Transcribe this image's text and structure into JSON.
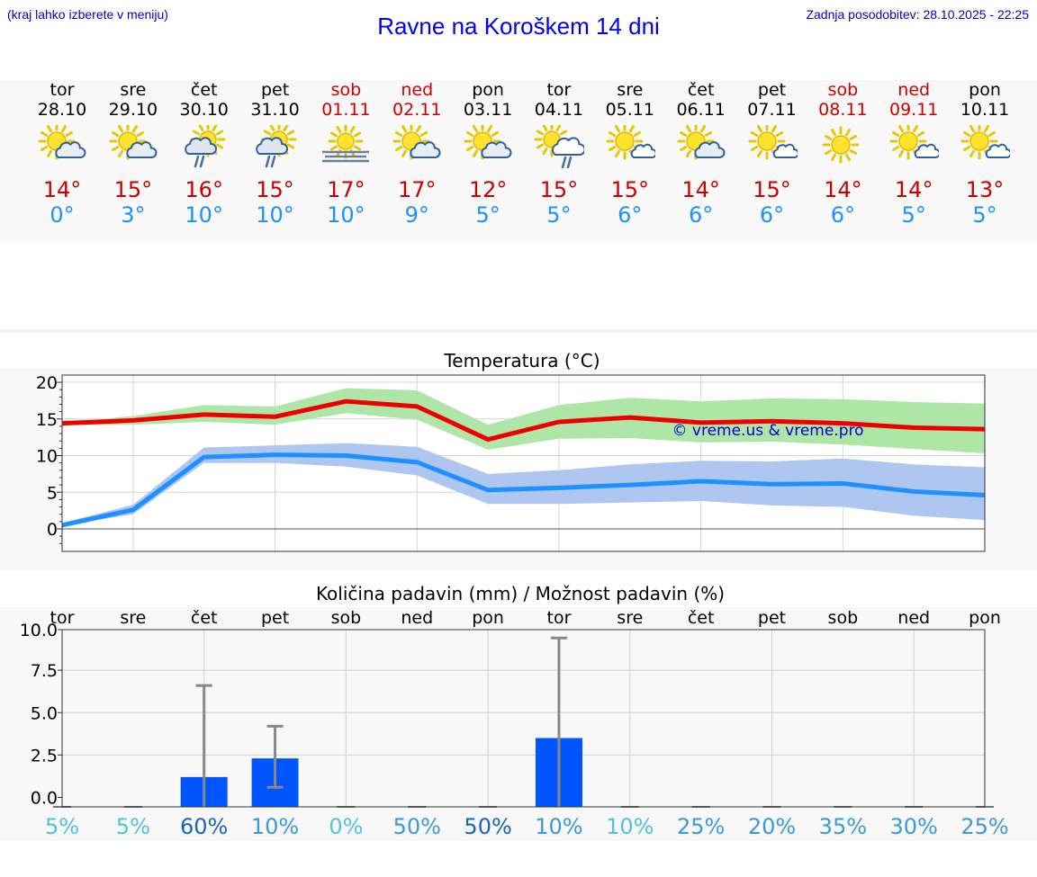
{
  "header": {
    "hint": "(kraj lahko izberete v meniju)",
    "title": "Ravne na Koroškem 14 dni",
    "updated": "Zadnja posodobitev: 28.10.2025 - 22:25"
  },
  "days": [
    {
      "name": "tor",
      "date": "28.10",
      "weekend": false,
      "icon": "sun-cloud-icon",
      "max": "14°",
      "min": "0°"
    },
    {
      "name": "sre",
      "date": "29.10",
      "weekend": false,
      "icon": "sun-cloud-icon",
      "max": "15°",
      "min": "3°"
    },
    {
      "name": "čet",
      "date": "30.10",
      "weekend": false,
      "icon": "sun-cloud-rain-icon",
      "max": "16°",
      "min": "10°"
    },
    {
      "name": "pet",
      "date": "31.10",
      "weekend": false,
      "icon": "sun-cloud-rain-icon",
      "max": "15°",
      "min": "10°"
    },
    {
      "name": "sob",
      "date": "01.11",
      "weekend": true,
      "icon": "sun-fog-icon",
      "max": "17°",
      "min": "10°"
    },
    {
      "name": "ned",
      "date": "02.11",
      "weekend": true,
      "icon": "sun-cloud-icon",
      "max": "17°",
      "min": "9°"
    },
    {
      "name": "pon",
      "date": "03.11",
      "weekend": false,
      "icon": "sun-cloud-icon",
      "max": "12°",
      "min": "5°"
    },
    {
      "name": "tor",
      "date": "04.11",
      "weekend": false,
      "icon": "sun-big-cloud-rain-icon",
      "max": "15°",
      "min": "5°"
    },
    {
      "name": "sre",
      "date": "05.11",
      "weekend": false,
      "icon": "sun-small-cloud-icon",
      "max": "15°",
      "min": "6°"
    },
    {
      "name": "čet",
      "date": "06.11",
      "weekend": false,
      "icon": "sun-cloud-icon",
      "max": "14°",
      "min": "6°"
    },
    {
      "name": "pet",
      "date": "07.11",
      "weekend": false,
      "icon": "sun-small-cloud-icon",
      "max": "15°",
      "min": "6°"
    },
    {
      "name": "sob",
      "date": "08.11",
      "weekend": true,
      "icon": "sun-icon",
      "max": "14°",
      "min": "6°"
    },
    {
      "name": "ned",
      "date": "09.11",
      "weekend": true,
      "icon": "sun-small-cloud-icon",
      "max": "14°",
      "min": "5°"
    },
    {
      "name": "pon",
      "date": "10.11",
      "weekend": false,
      "icon": "sun-small-cloud-icon",
      "max": "13°",
      "min": "5°"
    }
  ],
  "colors": {
    "max_line": "#ee0000",
    "max_band": "#aee6a8",
    "min_line": "#1e90ff",
    "min_band": "#aec6f0",
    "bar": "#0055ff",
    "whisker": "#888888",
    "weekend": "#cc0000",
    "watermark": "#0000cc"
  },
  "chart_data": [
    {
      "type": "line",
      "title": "Temperatura (°C)",
      "watermark": "© vreme.us & vreme.pro",
      "ylim": [
        -3,
        21
      ],
      "yticks": [
        "20",
        "15",
        "10",
        "5",
        "0"
      ],
      "x": [
        0,
        1,
        2,
        3,
        4,
        5,
        6,
        7,
        8,
        9,
        10,
        11,
        12,
        13
      ],
      "series": [
        {
          "name": "max",
          "values": [
            14.4,
            14.8,
            15.6,
            15.3,
            17.4,
            16.7,
            12.2,
            14.6,
            15.2,
            14.5,
            14.7,
            14.4,
            13.8,
            13.6
          ],
          "band_low": [
            14.2,
            14.2,
            14.6,
            14.2,
            15.8,
            14.9,
            10.8,
            12.3,
            12.4,
            11.8,
            11.9,
            11.5,
            10.9,
            10.3
          ],
          "band_high": [
            14.5,
            15.4,
            16.9,
            16.7,
            19.2,
            18.9,
            14.2,
            16.9,
            17.9,
            17.4,
            17.8,
            17.7,
            17.3,
            17.1
          ]
        },
        {
          "name": "min",
          "values": [
            0.5,
            2.6,
            9.8,
            10.1,
            10.0,
            9.1,
            5.3,
            5.6,
            6.0,
            6.5,
            6.1,
            6.2,
            5.1,
            4.6
          ],
          "band_low": [
            0.4,
            2.0,
            9.0,
            9.0,
            8.5,
            7.3,
            3.4,
            3.4,
            3.6,
            3.8,
            3.2,
            3.0,
            1.8,
            1.2
          ],
          "band_high": [
            0.8,
            3.3,
            11.1,
            11.4,
            11.7,
            11.2,
            7.5,
            8.0,
            8.8,
            9.3,
            9.2,
            9.6,
            8.8,
            8.4
          ]
        }
      ]
    },
    {
      "type": "bar",
      "title": "Količina padavin (mm) / Možnost padavin (%)",
      "ylim": [
        -0.5,
        10
      ],
      "yticks": [
        "10.0",
        "7.5",
        "5.0",
        "2.5",
        "0.0"
      ],
      "categories": [
        "tor",
        "sre",
        "čet",
        "pet",
        "sob",
        "ned",
        "pon",
        "tor",
        "sre",
        "čet",
        "pet",
        "sob",
        "ned",
        "pon"
      ],
      "values": [
        0,
        0,
        1.2,
        2.3,
        0,
        0,
        0,
        3.5,
        0,
        0,
        0,
        0,
        0,
        0
      ],
      "err_low": [
        0,
        0,
        0,
        0.6,
        0,
        0,
        0,
        0,
        0,
        0,
        0,
        0,
        0,
        0
      ],
      "err_high": [
        0,
        0,
        6.6,
        4.2,
        0,
        0,
        0,
        9.4,
        0,
        0,
        0,
        0,
        0,
        0
      ],
      "probability": [
        "5%",
        "5%",
        "60%",
        "10%",
        "0%",
        "50%",
        "50%",
        "10%",
        "10%",
        "25%",
        "20%",
        "35%",
        "30%",
        "25%"
      ],
      "probability_colors": [
        "#4fc3e0",
        "#4fc3e0",
        "#1565c0",
        "#3a9ad9",
        "#4fc3e0",
        "#3a9ad9",
        "#1565c0",
        "#3a9ad9",
        "#4fc3e0",
        "#3a9ad9",
        "#3a9ad9",
        "#3a9ad9",
        "#3a9ad9",
        "#3a9ad9"
      ]
    }
  ]
}
